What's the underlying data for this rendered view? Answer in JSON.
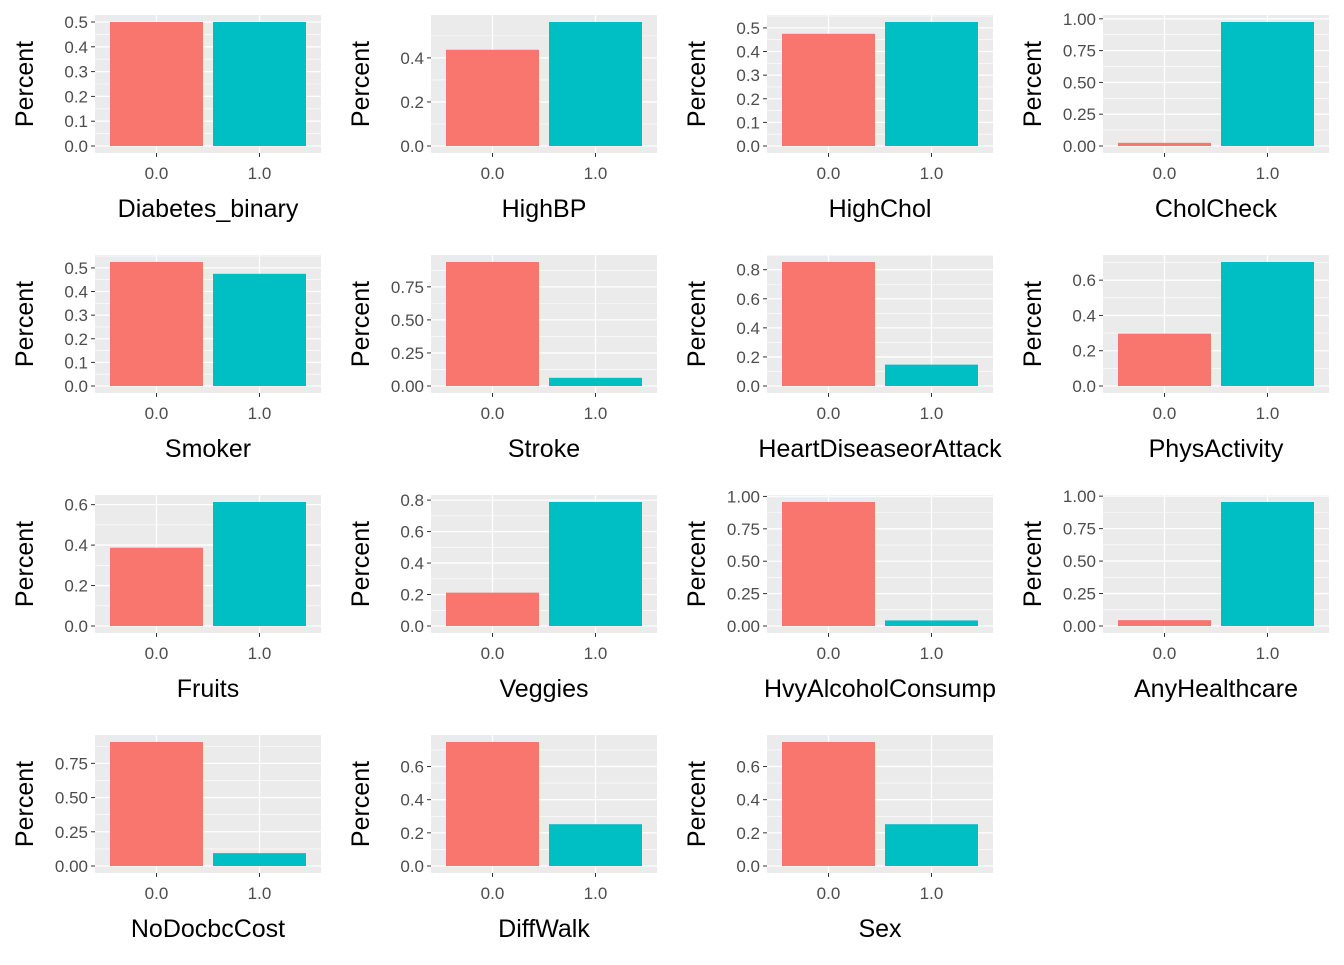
{
  "colors": {
    "panel_bg": "#EBEBEB",
    "grid": "#FFFFFF",
    "axis_text": "#4D4D4D",
    "title_text": "#000000",
    "bar_0": "#F8766D",
    "bar_1": "#00BFC4"
  },
  "chart_data": [
    {
      "type": "bar",
      "xlabel": "Diabetes_binary",
      "ylabel": "Percent",
      "categories": [
        "0.0",
        "1.0"
      ],
      "values": [
        0.5,
        0.5
      ],
      "yticks": [
        "0.0",
        "0.1",
        "0.2",
        "0.3",
        "0.4",
        "0.5"
      ],
      "ylim": [
        0,
        0.5
      ],
      "grid": true
    },
    {
      "type": "bar",
      "xlabel": "HighBP",
      "ylabel": "Percent",
      "categories": [
        "0.0",
        "1.0"
      ],
      "values": [
        0.437,
        0.563
      ],
      "yticks": [
        "0.0",
        "0.2",
        "0.4"
      ],
      "ylim": [
        0,
        0.563
      ],
      "grid": true
    },
    {
      "type": "bar",
      "xlabel": "HighChol",
      "ylabel": "Percent",
      "categories": [
        "0.0",
        "1.0"
      ],
      "values": [
        0.475,
        0.525
      ],
      "yticks": [
        "0.0",
        "0.1",
        "0.2",
        "0.3",
        "0.4",
        "0.5"
      ],
      "ylim": [
        0,
        0.525
      ],
      "grid": true
    },
    {
      "type": "bar",
      "xlabel": "CholCheck",
      "ylabel": "Percent",
      "categories": [
        "0.0",
        "1.0"
      ],
      "values": [
        0.025,
        0.975
      ],
      "yticks": [
        "0.00",
        "0.25",
        "0.50",
        "0.75",
        "1.00"
      ],
      "ylim": [
        0,
        0.975
      ],
      "grid": true
    },
    {
      "type": "bar",
      "xlabel": "Smoker",
      "ylabel": "Percent",
      "categories": [
        "0.0",
        "1.0"
      ],
      "values": [
        0.525,
        0.475
      ],
      "yticks": [
        "0.0",
        "0.1",
        "0.2",
        "0.3",
        "0.4",
        "0.5"
      ],
      "ylim": [
        0,
        0.525
      ],
      "grid": true
    },
    {
      "type": "bar",
      "xlabel": "Stroke",
      "ylabel": "Percent",
      "categories": [
        "0.0",
        "1.0"
      ],
      "values": [
        0.938,
        0.062
      ],
      "yticks": [
        "0.00",
        "0.25",
        "0.50",
        "0.75"
      ],
      "ylim": [
        0,
        0.938
      ],
      "grid": true
    },
    {
      "type": "bar",
      "xlabel": "HeartDiseaseorAttack",
      "ylabel": "Percent",
      "categories": [
        "0.0",
        "1.0"
      ],
      "values": [
        0.853,
        0.147
      ],
      "yticks": [
        "0.0",
        "0.2",
        "0.4",
        "0.6",
        "0.8"
      ],
      "ylim": [
        0,
        0.853
      ],
      "grid": true
    },
    {
      "type": "bar",
      "xlabel": "PhysActivity",
      "ylabel": "Percent",
      "categories": [
        "0.0",
        "1.0"
      ],
      "values": [
        0.297,
        0.703
      ],
      "yticks": [
        "0.0",
        "0.2",
        "0.4",
        "0.6"
      ],
      "ylim": [
        0,
        0.703
      ],
      "grid": true
    },
    {
      "type": "bar",
      "xlabel": "Fruits",
      "ylabel": "Percent",
      "categories": [
        "0.0",
        "1.0"
      ],
      "values": [
        0.387,
        0.613
      ],
      "yticks": [
        "0.0",
        "0.2",
        "0.4",
        "0.6"
      ],
      "ylim": [
        0,
        0.613
      ],
      "grid": true
    },
    {
      "type": "bar",
      "xlabel": "Veggies",
      "ylabel": "Percent",
      "categories": [
        "0.0",
        "1.0"
      ],
      "values": [
        0.212,
        0.788
      ],
      "yticks": [
        "0.0",
        "0.2",
        "0.4",
        "0.6",
        "0.8"
      ],
      "ylim": [
        0,
        0.788
      ],
      "grid": true
    },
    {
      "type": "bar",
      "xlabel": "HvyAlcoholConsump",
      "ylabel": "Percent",
      "categories": [
        "0.0",
        "1.0"
      ],
      "values": [
        0.957,
        0.043
      ],
      "yticks": [
        "0.00",
        "0.25",
        "0.50",
        "0.75",
        "1.00"
      ],
      "ylim": [
        0,
        0.957
      ],
      "grid": true
    },
    {
      "type": "bar",
      "xlabel": "AnyHealthcare",
      "ylabel": "Percent",
      "categories": [
        "0.0",
        "1.0"
      ],
      "values": [
        0.045,
        0.955
      ],
      "yticks": [
        "0.00",
        "0.25",
        "0.50",
        "0.75",
        "1.00"
      ],
      "ylim": [
        0,
        0.955
      ],
      "grid": true
    },
    {
      "type": "bar",
      "xlabel": "NoDocbcCost",
      "ylabel": "Percent",
      "categories": [
        "0.0",
        "1.0"
      ],
      "values": [
        0.906,
        0.094
      ],
      "yticks": [
        "0.00",
        "0.25",
        "0.50",
        "0.75"
      ],
      "ylim": [
        0,
        0.906
      ],
      "grid": true
    },
    {
      "type": "bar",
      "xlabel": "DiffWalk",
      "ylabel": "Percent",
      "categories": [
        "0.0",
        "1.0"
      ],
      "values": [
        0.748,
        0.252
      ],
      "yticks": [
        "0.0",
        "0.2",
        "0.4",
        "0.6"
      ],
      "ylim": [
        0,
        0.748
      ],
      "grid": true
    },
    {
      "type": "bar",
      "xlabel": "Sex",
      "ylabel": "Percent",
      "categories": [
        "0.0",
        "1.0"
      ],
      "values": [
        0.748,
        0.252
      ],
      "yticks": [
        "0.0",
        "0.2",
        "0.4",
        "0.6"
      ],
      "ylim": [
        0,
        0.748
      ],
      "grid": true
    }
  ]
}
